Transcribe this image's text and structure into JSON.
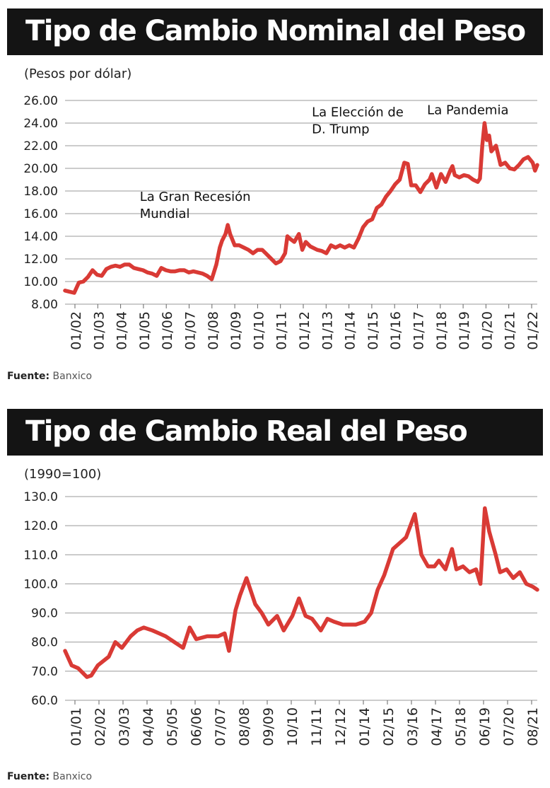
{
  "charts": [
    {
      "heading": "Tipo de Cambio Nominal del Peso",
      "unit": "(Pesos por dólar)",
      "source_label": "Fuente:",
      "source_value": "Banxico"
    },
    {
      "heading": "Tipo de Cambio Real del Peso",
      "unit": "(1990=100)",
      "source_label": "Fuente:",
      "source_value": "Banxico"
    }
  ],
  "colors": {
    "line": "#d93a35",
    "title_bg": "#141414",
    "grid": "#999999"
  },
  "chart_data": [
    {
      "type": "line",
      "title": "Tipo de Cambio Nominal del Peso",
      "ylabel": "(Pesos por dólar)",
      "ylim": [
        8,
        26
      ],
      "yticks": [
        "8.00",
        "10.00",
        "12.00",
        "14.00",
        "16.00",
        "18.00",
        "20.00",
        "22.00",
        "24.00",
        "26.00"
      ],
      "xticks": [
        "01/02",
        "01/03",
        "01/04",
        "01/05",
        "01/06",
        "01/07",
        "01/08",
        "01/09",
        "01/10",
        "01/11",
        "01/12",
        "01/13",
        "01/14",
        "01/15",
        "01/16",
        "01/17",
        "01/18",
        "01/19",
        "01/20",
        "01/21",
        "01/22"
      ],
      "xlim": [
        2002.0,
        2022.6
      ],
      "annotations": [
        {
          "lines": [
            "La Gran Recesión",
            "Mundial"
          ],
          "x": 2008.9,
          "y": 15.0
        },
        {
          "lines": [
            "La Elección de",
            "D. Trump"
          ],
          "x": 2016.9,
          "y": 20.6
        },
        {
          "lines": [
            "La Pandemia"
          ],
          "x": 2020.2,
          "y": 23.9
        }
      ],
      "series": [
        {
          "x": [
            2002.0,
            2002.2,
            2002.4,
            2002.6,
            2002.8,
            2003.0,
            2003.2,
            2003.4,
            2003.6,
            2003.8,
            2004.0,
            2004.2,
            2004.4,
            2004.6,
            2004.8,
            2005.0,
            2005.2,
            2005.4,
            2005.6,
            2005.8,
            2006.0,
            2006.2,
            2006.4,
            2006.6,
            2006.8,
            2007.0,
            2007.2,
            2007.4,
            2007.6,
            2007.8,
            2008.0,
            2008.2,
            2008.4,
            2008.6,
            2008.75,
            2008.85,
            2009.0,
            2009.1,
            2009.2,
            2009.4,
            2009.6,
            2009.8,
            2010.0,
            2010.2,
            2010.4,
            2010.6,
            2010.8,
            2011.0,
            2011.2,
            2011.4,
            2011.6,
            2011.7,
            2011.8,
            2012.0,
            2012.2,
            2012.35,
            2012.5,
            2012.7,
            2013.0,
            2013.2,
            2013.4,
            2013.6,
            2013.8,
            2014.0,
            2014.2,
            2014.4,
            2014.6,
            2014.8,
            2015.0,
            2015.2,
            2015.4,
            2015.6,
            2015.8,
            2016.0,
            2016.2,
            2016.4,
            2016.6,
            2016.8,
            2016.95,
            2017.1,
            2017.3,
            2017.5,
            2017.7,
            2017.9,
            2018.0,
            2018.2,
            2018.4,
            2018.6,
            2018.8,
            2018.9,
            2019.0,
            2019.2,
            2019.4,
            2019.6,
            2019.8,
            2020.0,
            2020.1,
            2020.2,
            2020.3,
            2020.4,
            2020.5,
            2020.6,
            2020.8,
            2021.0,
            2021.2,
            2021.4,
            2021.6,
            2021.8,
            2022.0,
            2022.2,
            2022.4,
            2022.5,
            2022.6
          ],
          "y": [
            9.2,
            9.1,
            9.0,
            9.9,
            10.0,
            10.4,
            11.0,
            10.6,
            10.5,
            11.1,
            11.3,
            11.4,
            11.3,
            11.5,
            11.5,
            11.2,
            11.1,
            11.0,
            10.8,
            10.7,
            10.5,
            11.2,
            11.0,
            10.9,
            10.9,
            11.0,
            11.0,
            10.8,
            10.9,
            10.8,
            10.7,
            10.5,
            10.2,
            11.5,
            13.0,
            13.6,
            14.2,
            15.0,
            14.2,
            13.2,
            13.2,
            13.0,
            12.8,
            12.5,
            12.8,
            12.8,
            12.4,
            12.0,
            11.6,
            11.8,
            12.5,
            14.0,
            13.8,
            13.5,
            14.2,
            12.8,
            13.5,
            13.1,
            12.8,
            12.7,
            12.5,
            13.2,
            13.0,
            13.2,
            13.0,
            13.2,
            13.0,
            13.8,
            14.8,
            15.3,
            15.5,
            16.5,
            16.8,
            17.5,
            18.0,
            18.6,
            19.0,
            20.5,
            20.4,
            18.5,
            18.5,
            17.9,
            18.6,
            19.0,
            19.5,
            18.3,
            19.5,
            18.8,
            19.8,
            20.2,
            19.4,
            19.2,
            19.4,
            19.3,
            19.0,
            18.8,
            19.1,
            22.0,
            24.0,
            22.5,
            22.9,
            21.5,
            22.0,
            20.3,
            20.5,
            20.0,
            19.9,
            20.3,
            20.8,
            21.0,
            20.5,
            19.8,
            20.3
          ]
        }
      ]
    },
    {
      "type": "line",
      "title": "Tipo de Cambio Real del Peso",
      "ylabel": "(1990=100)",
      "ylim": [
        60,
        130
      ],
      "yticks": [
        "60.0",
        "70.0",
        "80.0",
        "90.0",
        "100.0",
        "110.0",
        "120.0",
        "130.0"
      ],
      "xticks": [
        "01/01",
        "02/02",
        "03/03",
        "04/04",
        "05/05",
        "06/06",
        "07/07",
        "08/08",
        "09/09",
        "10/10",
        "11/11",
        "12/12",
        "01/14",
        "02/15",
        "03/16",
        "04/17",
        "05/18",
        "06/19",
        "07/20",
        "08/21"
      ],
      "xlim": [
        2001.0,
        2022.6
      ],
      "series": [
        {
          "x": [
            2001.0,
            2001.3,
            2001.6,
            2002.0,
            2002.2,
            2002.5,
            2003.0,
            2003.3,
            2003.6,
            2004.0,
            2004.3,
            2004.6,
            2005.0,
            2005.3,
            2005.6,
            2006.0,
            2006.4,
            2006.7,
            2007.0,
            2007.5,
            2008.0,
            2008.3,
            2008.5,
            2008.8,
            2009.0,
            2009.3,
            2009.7,
            2010.0,
            2010.3,
            2010.7,
            2011.0,
            2011.4,
            2011.7,
            2012.0,
            2012.3,
            2012.7,
            2013.0,
            2013.3,
            2013.7,
            2014.0,
            2014.3,
            2014.7,
            2015.0,
            2015.3,
            2015.6,
            2016.0,
            2016.3,
            2016.6,
            2016.9,
            2017.0,
            2017.3,
            2017.6,
            2017.9,
            2018.1,
            2018.4,
            2018.7,
            2018.9,
            2019.2,
            2019.5,
            2019.8,
            2020.0,
            2020.2,
            2020.4,
            2020.7,
            2020.9,
            2021.2,
            2021.5,
            2021.8,
            2022.1,
            2022.4,
            2022.6
          ],
          "y": [
            77,
            72,
            71,
            68,
            68.5,
            72,
            75,
            80,
            78,
            82,
            84,
            85,
            84,
            83,
            82,
            80,
            78,
            85,
            81,
            82,
            82,
            83,
            77,
            91,
            96,
            102,
            93,
            90,
            86,
            89,
            84,
            89,
            95,
            89,
            88,
            84,
            88,
            87,
            86,
            86,
            86,
            87,
            90,
            98,
            103,
            112,
            114,
            116,
            122,
            124,
            110,
            106,
            106,
            108,
            105,
            112,
            105,
            106,
            104,
            105,
            100,
            126,
            118,
            110,
            104,
            105,
            102,
            104,
            100,
            99,
            98
          ]
        }
      ]
    }
  ]
}
